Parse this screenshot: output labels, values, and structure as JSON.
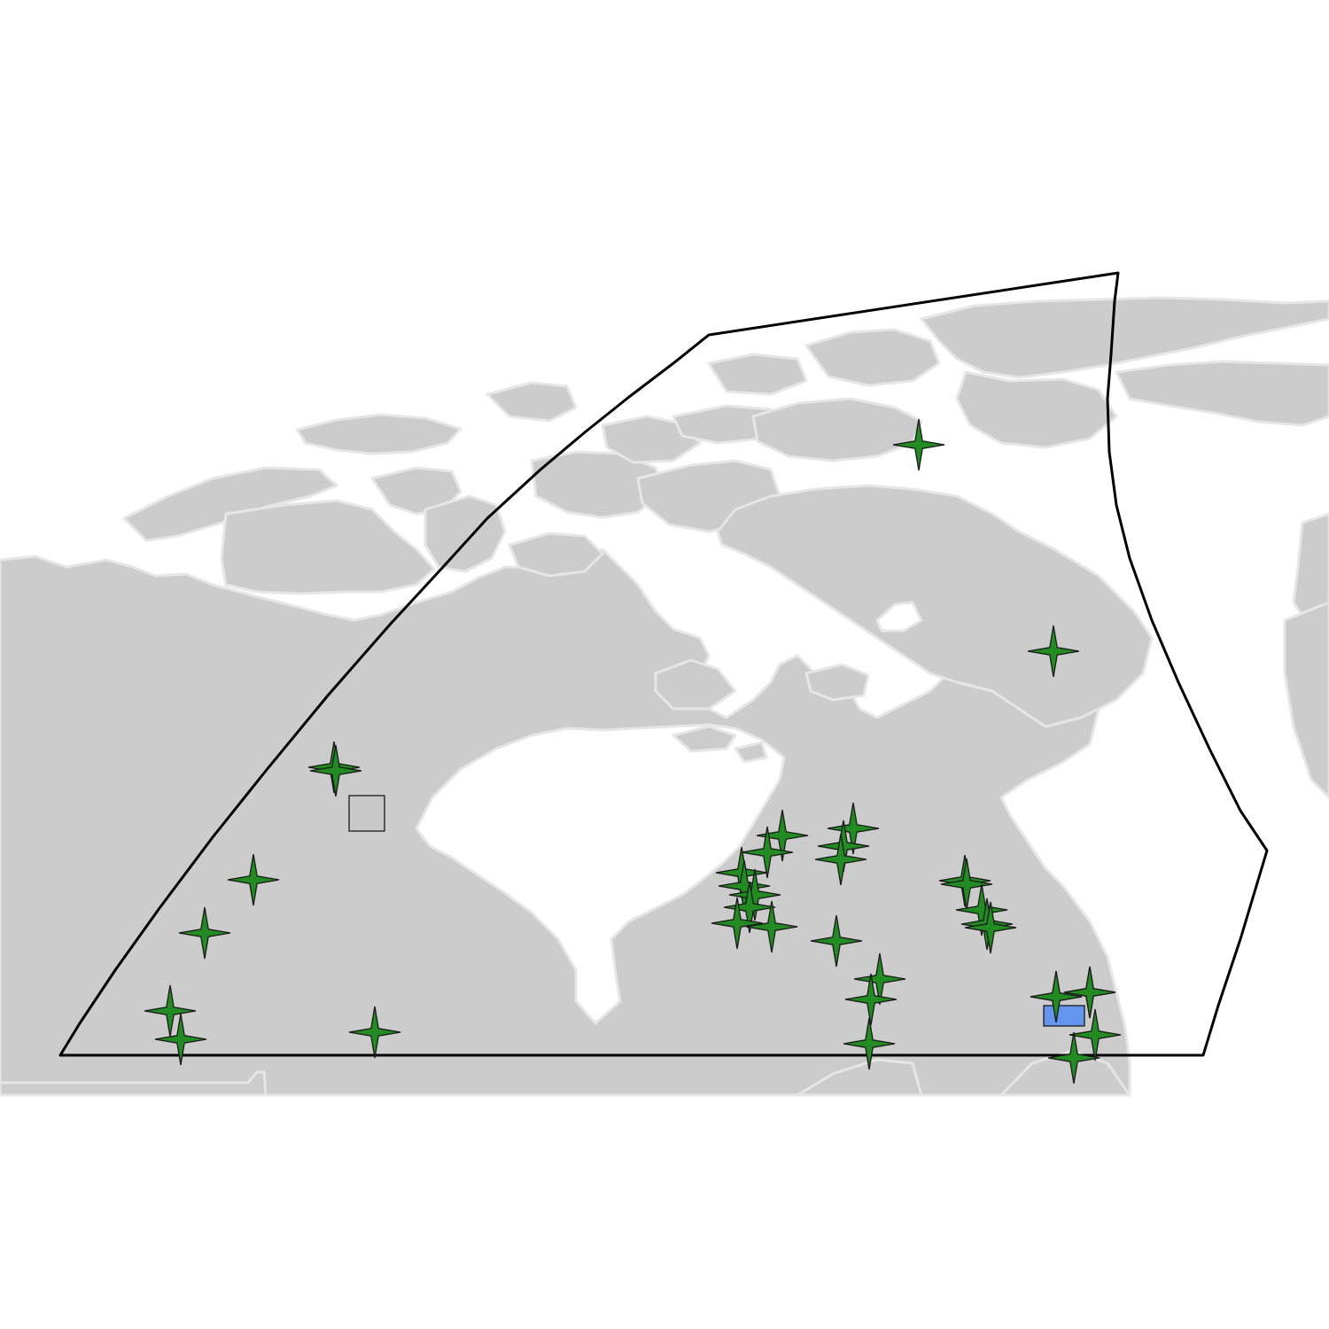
{
  "map": {
    "land_color": "#cccccc",
    "water_color": "#ffffff",
    "outline_color": "#000000",
    "border_color": "#e6e6e6"
  },
  "legend_symbols": {
    "star": {
      "icon": "four-point-star-icon",
      "color": "#228b22"
    },
    "square": {
      "icon": "square-icon",
      "color": "#c8c8c8"
    },
    "rectangle": {
      "icon": "rectangle-icon",
      "color": "#6495ed"
    }
  },
  "markers": {
    "star_count": 44,
    "square_count": 1,
    "rectangle_count": 1
  }
}
